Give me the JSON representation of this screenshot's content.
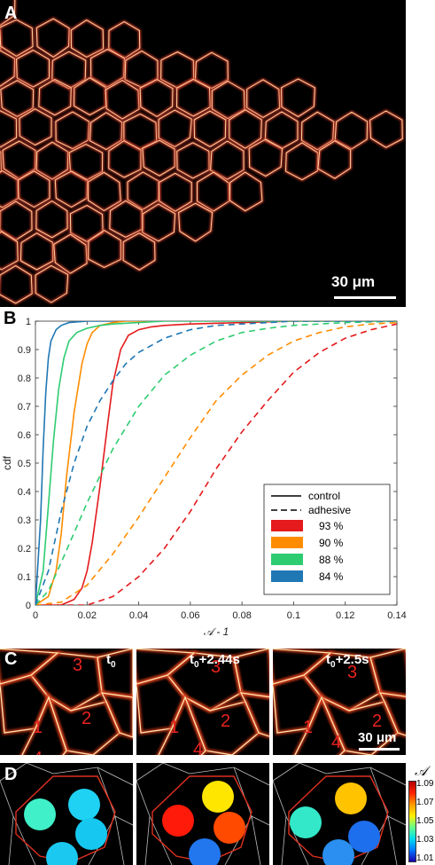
{
  "panels": {
    "a": {
      "letter": "A",
      "scale_bar": "30 μm"
    },
    "b": {
      "letter": "B"
    },
    "c": {
      "letter": "C",
      "times": [
        "t0",
        "t0+2.44s",
        "t0+2.5s"
      ],
      "time_main": [
        "t",
        "t",
        "t"
      ],
      "time_sub": [
        "0",
        "0",
        "0"
      ],
      "time_tail": [
        "",
        "+2.44s",
        "+2.5s"
      ],
      "cell_labels": [
        "1",
        "2",
        "3",
        "4"
      ],
      "scale_bar": "30 μm"
    },
    "d": {
      "letter": "D",
      "colorbar_label": "𝒜",
      "colorbar_ticks": [
        "1.09",
        "1.07",
        "1.05",
        "1.03",
        "1.01"
      ]
    }
  },
  "colors": {
    "red": "#e41a1c",
    "orange": "#ff8c00",
    "green": "#2ecc71",
    "blue": "#1f77b4"
  },
  "chart_data": {
    "type": "line",
    "title": "",
    "xlabel": "𝒜 - 1",
    "ylabel": "cdf",
    "xlim": [
      0,
      0.14
    ],
    "ylim": [
      0,
      1
    ],
    "xticks": [
      "0",
      "0.02",
      "0.04",
      "0.06",
      "0.08",
      "0.1",
      "0.12",
      "0.14"
    ],
    "yticks": [
      "0",
      "0.1",
      "0.2",
      "0.3",
      "0.4",
      "0.5",
      "0.6",
      "0.7",
      "0.8",
      "0.9",
      "1"
    ],
    "legend_position": "bottom-right",
    "legend_styles": [
      "control",
      "adhesive"
    ],
    "series": [
      {
        "name": "93 %",
        "color": "#e41a1c",
        "style": "solid",
        "x": [
          0,
          0.01,
          0.015,
          0.018,
          0.02,
          0.022,
          0.025,
          0.028,
          0.03,
          0.033,
          0.036,
          0.04,
          0.045,
          0.05,
          0.06,
          0.08,
          0.1,
          0.14
        ],
        "y": [
          0,
          0.0,
          0.02,
          0.06,
          0.12,
          0.22,
          0.42,
          0.64,
          0.78,
          0.9,
          0.95,
          0.97,
          0.98,
          0.985,
          0.99,
          0.995,
          1.0,
          1.0
        ]
      },
      {
        "name": "90 %",
        "color": "#ff8c00",
        "style": "solid",
        "x": [
          0,
          0.005,
          0.008,
          0.01,
          0.012,
          0.015,
          0.018,
          0.02,
          0.022,
          0.025,
          0.03,
          0.035,
          0.045
        ],
        "y": [
          0,
          0.03,
          0.12,
          0.25,
          0.45,
          0.68,
          0.85,
          0.92,
          0.96,
          0.985,
          0.995,
          1.0,
          1.0
        ]
      },
      {
        "name": "88 %",
        "color": "#2ecc71",
        "style": "solid",
        "x": [
          0,
          0.003,
          0.005,
          0.007,
          0.009,
          0.011,
          0.013,
          0.016,
          0.02,
          0.025,
          0.03,
          0.04,
          0.05,
          0.14
        ],
        "y": [
          0,
          0.12,
          0.35,
          0.58,
          0.76,
          0.87,
          0.93,
          0.96,
          0.975,
          0.985,
          0.99,
          0.995,
          1.0,
          1.0
        ]
      },
      {
        "name": "84 %",
        "color": "#1f77b4",
        "style": "solid",
        "x": [
          0,
          0.002,
          0.003,
          0.004,
          0.005,
          0.006,
          0.008,
          0.01,
          0.013,
          0.02,
          0.03
        ],
        "y": [
          0,
          0.3,
          0.55,
          0.75,
          0.87,
          0.93,
          0.97,
          0.985,
          0.995,
          1.0,
          1.0
        ]
      },
      {
        "name": "93 %",
        "color": "#e41a1c",
        "style": "dashed",
        "x": [
          0,
          0.02,
          0.03,
          0.04,
          0.05,
          0.06,
          0.07,
          0.08,
          0.09,
          0.1,
          0.11,
          0.12,
          0.13,
          0.14
        ],
        "y": [
          0,
          0.0,
          0.03,
          0.1,
          0.2,
          0.33,
          0.48,
          0.61,
          0.72,
          0.82,
          0.89,
          0.94,
          0.97,
          0.99
        ]
      },
      {
        "name": "90 %",
        "color": "#ff8c00",
        "style": "dashed",
        "x": [
          0,
          0.01,
          0.02,
          0.03,
          0.04,
          0.05,
          0.06,
          0.07,
          0.08,
          0.09,
          0.1,
          0.11,
          0.12,
          0.13,
          0.14
        ],
        "y": [
          0,
          0.01,
          0.07,
          0.18,
          0.31,
          0.45,
          0.59,
          0.72,
          0.81,
          0.88,
          0.93,
          0.96,
          0.98,
          0.99,
          0.995
        ]
      },
      {
        "name": "88 %",
        "color": "#2ecc71",
        "style": "dashed",
        "x": [
          0,
          0.005,
          0.01,
          0.02,
          0.03,
          0.04,
          0.05,
          0.06,
          0.07,
          0.08,
          0.09,
          0.1,
          0.12,
          0.14
        ],
        "y": [
          0,
          0.05,
          0.15,
          0.36,
          0.55,
          0.7,
          0.81,
          0.88,
          0.93,
          0.96,
          0.975,
          0.985,
          0.995,
          1.0
        ]
      },
      {
        "name": "84 %",
        "color": "#1f77b4",
        "style": "dashed",
        "x": [
          0,
          0.005,
          0.01,
          0.015,
          0.02,
          0.025,
          0.03,
          0.035,
          0.04,
          0.05,
          0.06,
          0.07,
          0.08,
          0.1,
          0.14
        ],
        "y": [
          0,
          0.12,
          0.33,
          0.5,
          0.63,
          0.72,
          0.79,
          0.85,
          0.89,
          0.94,
          0.97,
          0.985,
          0.99,
          1.0,
          1.0
        ]
      }
    ]
  }
}
